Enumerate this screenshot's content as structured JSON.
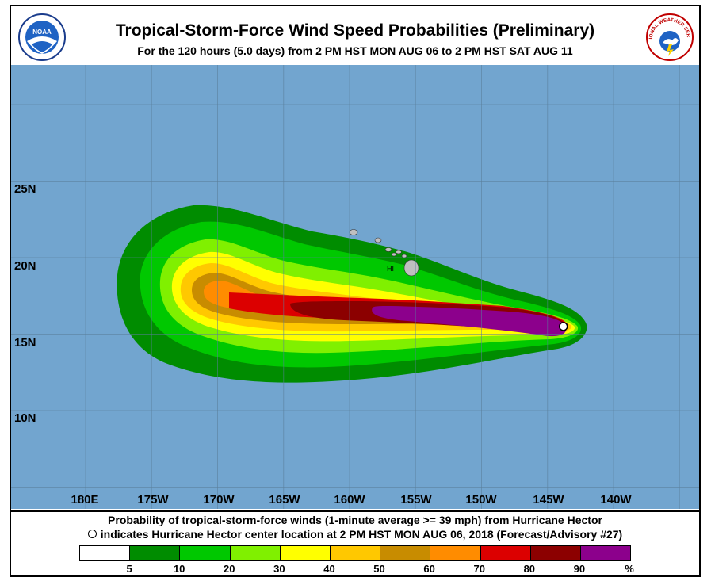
{
  "header": {
    "title": "Tropical-Storm-Force Wind Speed Probabilities (Preliminary)",
    "subtitle": "For the 120 hours (5.0 days) from 2 PM HST MON AUG 06 to 2 PM HST SAT AUG 11",
    "noaa_logo_text": "NOAA",
    "nws_logo_text": "NATIONAL WEATHER SERVICE"
  },
  "map": {
    "ocean_color": "#72a5cf",
    "land_color": "#bfbfbf",
    "island_label": "HI",
    "lat_labels": [
      "25N",
      "20N",
      "15N",
      "10N"
    ],
    "lon_labels": [
      "180E",
      "175W",
      "170W",
      "165W",
      "160W",
      "155W",
      "150W",
      "145W",
      "140W"
    ],
    "storm_center": {
      "lon": -143.8,
      "lat": 15.5
    }
  },
  "footer": {
    "caption_line1": "Probability of tropical-storm-force winds (1-minute average >= 39 mph) from Hurricane Hector",
    "caption_line2": "indicates Hurricane Hector center location at 2 PM HST MON AUG 06, 2018 (Forecast/Advisory #27)"
  },
  "legend": {
    "colors": [
      "#ffffff",
      "#008c00",
      "#00c800",
      "#80f000",
      "#ffff00",
      "#ffc800",
      "#c88c00",
      "#ff8c00",
      "#dc0000",
      "#8c0000",
      "#8c008c"
    ],
    "labels": [
      "5",
      "10",
      "20",
      "30",
      "40",
      "50",
      "60",
      "70",
      "80",
      "90",
      "%"
    ]
  }
}
